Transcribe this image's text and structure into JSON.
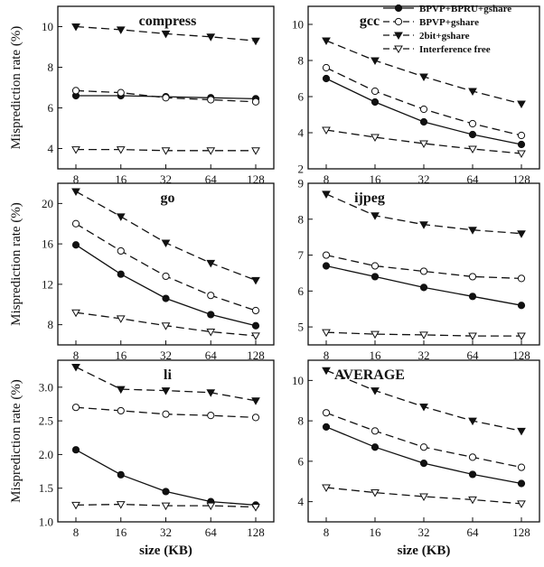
{
  "chart_data": {
    "type": "line",
    "x_label": "size (KB)",
    "y_label": "Misprediction rate (%)",
    "x": [
      "8",
      "16",
      "32",
      "64",
      "128"
    ],
    "legend": {
      "placement": "top-right",
      "entries": [
        "BPVP+BPRU+gshare",
        "BPVP+gshare",
        "2bit+gshare",
        "Interference free"
      ]
    },
    "series_styles": {
      "BPVP+BPRU+gshare": {
        "line": "solid",
        "marker": "filled-circle"
      },
      "BPVP+gshare": {
        "line": "dashed",
        "marker": "open-circle"
      },
      "2bit+gshare": {
        "line": "dashed",
        "marker": "filled-down-triangle"
      },
      "Interference free": {
        "line": "dashed",
        "marker": "open-down-triangle"
      }
    },
    "panels": [
      {
        "title": "compress",
        "ylim": [
          3,
          11
        ],
        "yticks": [
          4,
          6,
          8,
          10
        ],
        "ytick_labels": [
          "4",
          "6",
          "8",
          "10"
        ],
        "series": [
          {
            "name": "BPVP+BPRU+gshare",
            "values": [
              6.6,
              6.6,
              6.55,
              6.5,
              6.45
            ]
          },
          {
            "name": "BPVP+gshare",
            "values": [
              6.85,
              6.75,
              6.5,
              6.4,
              6.3
            ]
          },
          {
            "name": "2bit+gshare",
            "values": [
              10.0,
              9.85,
              9.65,
              9.5,
              9.3
            ]
          },
          {
            "name": "Interference free",
            "values": [
              3.95,
              3.95,
              3.9,
              3.9,
              3.9
            ]
          }
        ]
      },
      {
        "title": "gcc",
        "ylim": [
          2,
          11
        ],
        "yticks": [
          2,
          4,
          6,
          8,
          10
        ],
        "ytick_labels": [
          "2",
          "4",
          "6",
          "8",
          "10"
        ],
        "series": [
          {
            "name": "BPVP+BPRU+gshare",
            "values": [
              7.0,
              5.7,
              4.6,
              3.9,
              3.35
            ]
          },
          {
            "name": "BPVP+gshare",
            "values": [
              7.6,
              6.3,
              5.3,
              4.5,
              3.85
            ]
          },
          {
            "name": "2bit+gshare",
            "values": [
              9.1,
              8.0,
              7.1,
              6.3,
              5.6
            ]
          },
          {
            "name": "Interference free",
            "values": [
              4.15,
              3.75,
              3.4,
              3.1,
              2.85
            ]
          }
        ]
      },
      {
        "title": "go",
        "ylim": [
          6,
          22
        ],
        "yticks": [
          8,
          12,
          16,
          20
        ],
        "ytick_labels": [
          "8",
          "12",
          "16",
          "20"
        ],
        "series": [
          {
            "name": "BPVP+BPRU+gshare",
            "values": [
              15.9,
              13.0,
              10.6,
              9.0,
              7.9
            ]
          },
          {
            "name": "BPVP+gshare",
            "values": [
              18.0,
              15.3,
              12.8,
              10.9,
              9.4
            ]
          },
          {
            "name": "2bit+gshare",
            "values": [
              21.2,
              18.7,
              16.1,
              14.1,
              12.4
            ]
          },
          {
            "name": "Interference free",
            "values": [
              9.2,
              8.6,
              7.9,
              7.3,
              6.9
            ]
          }
        ]
      },
      {
        "title": "ijpeg",
        "ylim": [
          4.5,
          9
        ],
        "yticks": [
          5,
          6,
          7,
          8,
          9
        ],
        "ytick_labels": [
          "5",
          "6",
          "7",
          "8",
          "9"
        ],
        "series": [
          {
            "name": "BPVP+BPRU+gshare",
            "values": [
              6.7,
              6.4,
              6.1,
              5.85,
              5.6
            ]
          },
          {
            "name": "BPVP+gshare",
            "values": [
              7.0,
              6.7,
              6.55,
              6.4,
              6.35
            ]
          },
          {
            "name": "2bit+gshare",
            "values": [
              8.7,
              8.1,
              7.85,
              7.7,
              7.6
            ]
          },
          {
            "name": "Interference free",
            "values": [
              4.85,
              4.8,
              4.78,
              4.75,
              4.75
            ]
          }
        ]
      },
      {
        "title": "li",
        "ylim": [
          1.0,
          3.4
        ],
        "yticks": [
          1.0,
          1.5,
          2.0,
          2.5,
          3.0
        ],
        "ytick_labels": [
          "1.0",
          "1.5",
          "2.0",
          "2.5",
          "3.0"
        ],
        "series": [
          {
            "name": "BPVP+BPRU+gshare",
            "values": [
              2.07,
              1.7,
              1.45,
              1.3,
              1.25
            ]
          },
          {
            "name": "BPVP+gshare",
            "values": [
              2.7,
              2.65,
              2.6,
              2.58,
              2.55
            ]
          },
          {
            "name": "2bit+gshare",
            "values": [
              3.3,
              2.97,
              2.95,
              2.92,
              2.8
            ]
          },
          {
            "name": "Interference free",
            "values": [
              1.25,
              1.26,
              1.24,
              1.24,
              1.22
            ]
          }
        ]
      },
      {
        "title": "AVERAGE",
        "ylim": [
          3,
          11
        ],
        "yticks": [
          4,
          6,
          8,
          10
        ],
        "ytick_labels": [
          "4",
          "6",
          "8",
          "10"
        ],
        "series": [
          {
            "name": "BPVP+BPRU+gshare",
            "values": [
              7.7,
              6.7,
              5.9,
              5.35,
              4.9
            ]
          },
          {
            "name": "BPVP+gshare",
            "values": [
              8.4,
              7.5,
              6.7,
              6.2,
              5.7
            ]
          },
          {
            "name": "2bit+gshare",
            "values": [
              10.5,
              9.5,
              8.7,
              8.0,
              7.5
            ]
          },
          {
            "name": "Interference free",
            "values": [
              4.7,
              4.45,
              4.25,
              4.1,
              3.9
            ]
          }
        ]
      }
    ]
  }
}
